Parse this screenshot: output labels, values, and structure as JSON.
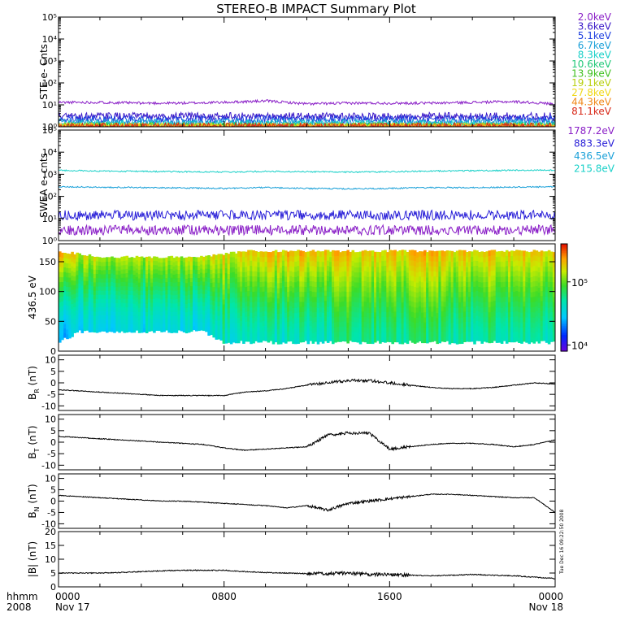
{
  "title": "STEREO-B IMPACT Summary Plot",
  "timestamp": "Tue Dec 16 09:22:50 2008",
  "x_axis": {
    "row1_prefix": "hhmm",
    "row2_prefix": "2008",
    "ticks": [
      {
        "t": 0,
        "time": "0000",
        "date": "Nov 17"
      },
      {
        "t": 8,
        "time": "0800",
        "date": ""
      },
      {
        "t": 16,
        "time": "1600",
        "date": ""
      },
      {
        "t": 24,
        "time": "0000",
        "date": "Nov 18"
      }
    ],
    "minor_step_hours": 2,
    "range_hours": [
      0,
      24
    ]
  },
  "colors": {
    "ste_2.0keV": "#8a1fc7",
    "ste_3.6keV": "#3a18c8",
    "ste_5.1keV": "#1d3fe0",
    "ste_6.7keV": "#1aa0d8",
    "ste_8.3keV": "#18d0c8",
    "ste_10.6keV": "#20c878",
    "ste_13.9keV": "#40c020",
    "ste_19.1keV": "#b8d010",
    "ste_27.8keV": "#f0d818",
    "ste_44.3keV": "#f08818",
    "ste_81.1keV": "#d82818",
    "swea_1787.2eV": "#8a1fc7",
    "swea_883.3eV": "#2a20d8",
    "swea_436.5eV": "#1aa0d8",
    "swea_215.8eV": "#18d0c8"
  },
  "chart_data": [
    {
      "type": "line",
      "ylabel": "STE e- Cnts",
      "yscale": "log",
      "ylim": [
        1,
        100000
      ],
      "ytick_labels": [
        "10⁰",
        "10¹",
        "10²",
        "10³",
        "10⁴",
        "10⁵"
      ],
      "x": [
        0,
        2,
        4,
        6,
        8,
        10,
        12,
        14,
        16,
        18,
        20,
        22,
        24
      ],
      "series": [
        {
          "name": "2.0keV",
          "color": "ste_2.0keV",
          "values": [
            13,
            13,
            12,
            12,
            13,
            15,
            11,
            12,
            12,
            12,
            13,
            14,
            11
          ]
        },
        {
          "name": "3.6keV",
          "color": "ste_3.6keV",
          "values": [
            3,
            3,
            3,
            3,
            3,
            3,
            3,
            3,
            3,
            3,
            3,
            3,
            3
          ]
        },
        {
          "name": "5.1keV",
          "color": "ste_5.1keV",
          "values": [
            2.2,
            2.2,
            2.2,
            2.2,
            2.2,
            2.2,
            2.2,
            2.2,
            2.2,
            2.2,
            2.2,
            2.2,
            2.2
          ]
        },
        {
          "name": "6.7keV",
          "color": "ste_6.7keV",
          "values": [
            1.6,
            1.6,
            1.6,
            1.6,
            1.6,
            1.6,
            1.6,
            1.6,
            1.6,
            1.6,
            1.6,
            1.6,
            1.6
          ]
        },
        {
          "name": "8.3keV",
          "color": "ste_8.3keV",
          "values": [
            1.3,
            1.3,
            1.3,
            1.3,
            1.3,
            1.3,
            1.3,
            1.3,
            1.3,
            1.3,
            1.3,
            1.3,
            1.3
          ]
        },
        {
          "name": "10.6keV",
          "color": "ste_10.6keV",
          "values": [
            1.1,
            1.1,
            1.1,
            1.1,
            1.1,
            1.1,
            1.1,
            1.1,
            1.1,
            1.1,
            1.1,
            1.1,
            1.1
          ]
        },
        {
          "name": "13.9keV",
          "color": "ste_13.9keV",
          "values": [
            1,
            1,
            1,
            1,
            1,
            1,
            1,
            1,
            1,
            1,
            1,
            1,
            1
          ]
        },
        {
          "name": "19.1keV",
          "color": "ste_19.1keV",
          "values": [
            1,
            1,
            1,
            1,
            1,
            1,
            1,
            1,
            1,
            1,
            1,
            1,
            1
          ]
        },
        {
          "name": "27.8keV",
          "color": "ste_27.8keV",
          "values": [
            1,
            1,
            1,
            1,
            1,
            1,
            1,
            1,
            1,
            1,
            1,
            1,
            1
          ]
        },
        {
          "name": "44.3keV",
          "color": "ste_44.3keV",
          "values": [
            1,
            1,
            1,
            1,
            1,
            1,
            1,
            1,
            1,
            1,
            1,
            1,
            1
          ]
        },
        {
          "name": "81.1keV",
          "color": "ste_81.1keV",
          "values": [
            1,
            1,
            1,
            1,
            1,
            1,
            1,
            1,
            1,
            1,
            1,
            1,
            1
          ]
        }
      ]
    },
    {
      "type": "line",
      "ylabel": "SWEA e- cnts",
      "yscale": "log",
      "ylim": [
        1,
        100000
      ],
      "ytick_labels": [
        "10⁰",
        "10¹",
        "10²",
        "10³",
        "10⁴",
        "10⁵"
      ],
      "x": [
        0,
        2,
        4,
        6,
        8,
        10,
        12,
        14,
        16,
        18,
        20,
        22,
        24
      ],
      "series": [
        {
          "name": "1787.2eV",
          "color": "swea_1787.2eV",
          "values": [
            3,
            3,
            3,
            3,
            3,
            3,
            3,
            3,
            3,
            3,
            3,
            3,
            3
          ]
        },
        {
          "name": "883.3eV",
          "color": "swea_883.3eV",
          "values": [
            14,
            14,
            14,
            14,
            14,
            14,
            14,
            14,
            14,
            14,
            14,
            14,
            15
          ]
        },
        {
          "name": "436.5eV",
          "color": "swea_436.5eV",
          "values": [
            270,
            260,
            250,
            240,
            230,
            250,
            230,
            220,
            230,
            250,
            250,
            260,
            270
          ]
        },
        {
          "name": "215.8eV",
          "color": "swea_215.8eV",
          "values": [
            1500,
            1400,
            1350,
            1300,
            1250,
            1350,
            1300,
            1250,
            1300,
            1400,
            1450,
            1500,
            1550
          ]
        }
      ]
    },
    {
      "type": "heatmap",
      "ylabel": "436.5 eV",
      "ylim": [
        0,
        180
      ],
      "yticks": [
        0,
        50,
        100,
        150
      ],
      "colorbar": {
        "scale": "log",
        "range": [
          8000,
          400000
        ],
        "tick_labels": [
          "10⁴",
          "10⁵"
        ],
        "tick_values": [
          10000,
          100000
        ]
      },
      "x": [
        0,
        1,
        2,
        3,
        4,
        5,
        6,
        7,
        8,
        9,
        10,
        11,
        12,
        13,
        14,
        15,
        16,
        17,
        18,
        19,
        20,
        21,
        22,
        23
      ],
      "pitch_top": [
        170,
        165,
        160,
        160,
        160,
        160,
        160,
        160,
        165,
        170,
        170,
        170,
        170,
        170,
        170,
        170,
        170,
        170,
        170,
        170,
        170,
        170,
        170,
        170
      ],
      "pitch_bottom": [
        12,
        30,
        30,
        30,
        30,
        30,
        30,
        30,
        12,
        12,
        12,
        12,
        12,
        12,
        12,
        12,
        12,
        12,
        12,
        12,
        12,
        12,
        12,
        12
      ],
      "level_high": [
        250000,
        150000,
        140000,
        130000,
        130000,
        130000,
        130000,
        150000,
        170000,
        180000,
        190000,
        200000,
        190000,
        180000,
        190000,
        180000,
        200000,
        190000,
        200000,
        180000,
        180000,
        190000,
        200000,
        180000
      ],
      "level_low": [
        25000,
        35000,
        35000,
        35000,
        35000,
        35000,
        35000,
        35000,
        45000,
        45000,
        45000,
        45000,
        45000,
        45000,
        60000,
        60000,
        60000,
        60000,
        60000,
        55000,
        50000,
        55000,
        55000,
        50000
      ]
    },
    {
      "type": "line",
      "ylabel": "B_R (nT)",
      "ylabel_main": "B",
      "ylabel_sub": "R",
      "ylabel_unit": " (nT)",
      "ylim": [
        -12,
        12
      ],
      "yticks": [
        -10,
        -5,
        0,
        5,
        10
      ],
      "x": [
        0,
        1,
        2,
        3,
        4,
        5,
        6,
        7,
        8,
        9,
        10,
        11,
        12,
        13,
        14,
        15,
        16,
        17,
        18,
        19,
        20,
        21,
        22,
        23,
        24
      ],
      "values": [
        -3,
        -3.5,
        -4,
        -4.5,
        -5,
        -5.5,
        -5.5,
        -5.5,
        -5.5,
        -4,
        -3.5,
        -2.5,
        -1,
        0,
        1,
        1,
        0,
        -1,
        -2,
        -2.5,
        -2.5,
        -2,
        -1,
        0,
        -0.5
      ]
    },
    {
      "type": "line",
      "ylabel": "B_T (nT)",
      "ylabel_main": "B",
      "ylabel_sub": "T",
      "ylabel_unit": " (nT)",
      "ylim": [
        -12,
        12
      ],
      "yticks": [
        -10,
        -5,
        0,
        5,
        10
      ],
      "x": [
        0,
        1,
        2,
        3,
        4,
        5,
        6,
        7,
        8,
        9,
        10,
        11,
        12,
        13,
        14,
        15,
        16,
        17,
        18,
        19,
        20,
        21,
        22,
        23,
        24
      ],
      "values": [
        2.5,
        2,
        1.5,
        1,
        0.5,
        0,
        -0.5,
        -1,
        -2.5,
        -3.5,
        -3,
        -2.5,
        -2,
        3,
        4,
        4,
        -3,
        -2,
        -1,
        -0.5,
        -0.5,
        -1,
        -2,
        -1,
        1
      ]
    },
    {
      "type": "line",
      "ylabel": "B_N (nT)",
      "ylabel_main": "B",
      "ylabel_sub": "N",
      "ylabel_unit": " (nT)",
      "ylim": [
        -12,
        12
      ],
      "yticks": [
        -10,
        -5,
        0,
        5,
        10
      ],
      "x": [
        0,
        1,
        2,
        3,
        4,
        5,
        6,
        7,
        8,
        9,
        10,
        11,
        12,
        13,
        14,
        15,
        16,
        17,
        18,
        19,
        20,
        21,
        22,
        23,
        24
      ],
      "values": [
        2.5,
        2,
        1.5,
        1,
        0.5,
        0,
        0,
        -0.5,
        -1,
        -1.5,
        -2,
        -3,
        -2,
        -4,
        -1,
        0,
        1,
        2,
        3,
        3,
        2.5,
        2,
        1.5,
        1.5,
        -5
      ]
    },
    {
      "type": "line",
      "ylabel": "|B| (nT)",
      "ylabel_main": "|B|",
      "ylabel_sub": "",
      "ylabel_unit": " (nT)",
      "ylim": [
        0,
        20
      ],
      "yticks": [
        0,
        5,
        10,
        15,
        20
      ],
      "x": [
        0,
        1,
        2,
        3,
        4,
        5,
        6,
        7,
        8,
        9,
        10,
        11,
        12,
        13,
        14,
        15,
        16,
        17,
        18,
        19,
        20,
        21,
        22,
        23,
        24
      ],
      "values": [
        5,
        5,
        5,
        5.2,
        5.5,
        5.8,
        6,
        6,
        6,
        5.5,
        5.2,
        5,
        4.8,
        4.8,
        5,
        4.5,
        4.5,
        4.2,
        4,
        4.2,
        4.5,
        4.2,
        4,
        3.5,
        3
      ]
    }
  ]
}
